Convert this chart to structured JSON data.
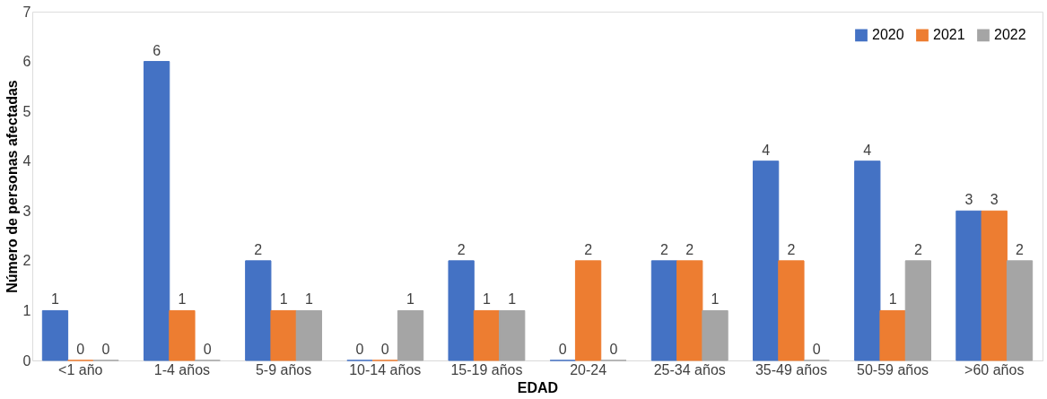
{
  "chart_data": {
    "type": "bar",
    "xlabel": "EDAD",
    "ylabel": "Número de personas afectadas",
    "categories": [
      "<1 año",
      "1-4 años",
      "5-9 años",
      "10-14 años",
      "15-19 años",
      "20-24",
      "25-34 años",
      "35-49 años",
      "50-59 años",
      ">60 años"
    ],
    "series": [
      {
        "name": "2020",
        "color": "#4472c4",
        "values": [
          1,
          6,
          2,
          0,
          2,
          0,
          2,
          4,
          4,
          3
        ]
      },
      {
        "name": "2021",
        "color": "#ed7d31",
        "values": [
          0,
          1,
          1,
          0,
          1,
          2,
          2,
          2,
          1,
          3
        ]
      },
      {
        "name": "2022",
        "color": "#a5a5a5",
        "values": [
          0,
          0,
          1,
          1,
          1,
          0,
          1,
          0,
          2,
          2
        ]
      }
    ],
    "ylim": [
      0,
      7
    ],
    "yticks": [
      0,
      1,
      2,
      3,
      4,
      5,
      6,
      7
    ],
    "grid": false,
    "legend": "top right",
    "data_labels": true
  }
}
